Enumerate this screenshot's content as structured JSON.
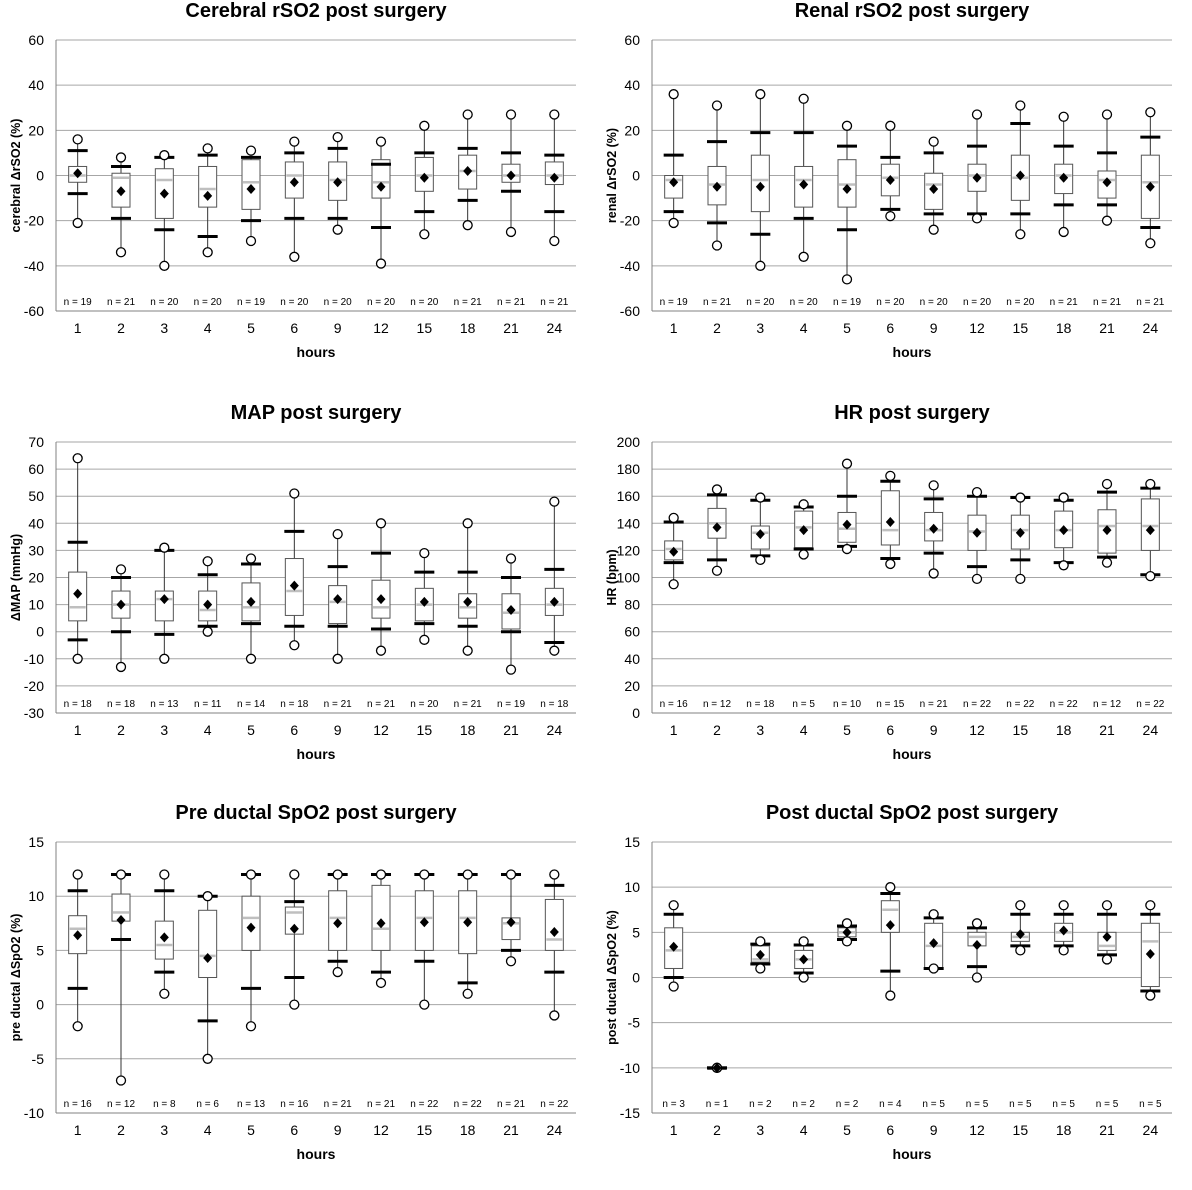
{
  "chart_data": [
    {
      "type": "boxplot",
      "title": "Cerebral rSO2 post surgery",
      "xlabel": "hours",
      "ylabel": "cerebral ΔrSO2 (%)",
      "categories": [
        "1",
        "2",
        "3",
        "4",
        "5",
        "6",
        "9",
        "12",
        "15",
        "18",
        "21",
        "24"
      ],
      "ylim": [
        -60,
        60
      ],
      "yticks": [
        -60,
        -40,
        -20,
        0,
        20,
        40,
        60
      ],
      "ytick_labels": [
        "-60",
        "-40",
        "-20",
        "0",
        "20",
        "40",
        "60"
      ],
      "n_labels": [
        "n = 19",
        "n = 21",
        "n = 20",
        "n = 20",
        "n = 19",
        "n = 20",
        "n = 20",
        "n = 20",
        "n = 20",
        "n = 21",
        "n = 21",
        "n = 21"
      ],
      "series": [
        {
          "name": "min_outlier",
          "values": [
            -21,
            -34,
            -40,
            -34,
            -29,
            -36,
            -24,
            -39,
            -26,
            -22,
            -25,
            -29
          ]
        },
        {
          "name": "whisker_low",
          "values": [
            -8,
            -19,
            -24,
            -27,
            -20,
            -19,
            -19,
            -23,
            -16,
            -11,
            -7,
            -16
          ]
        },
        {
          "name": "q1",
          "values": [
            -3,
            -14,
            -19,
            -14,
            -15,
            -10,
            -11,
            -10,
            -7,
            -6,
            -3,
            -4
          ]
        },
        {
          "name": "median",
          "values": [
            0,
            -1,
            -2,
            -6,
            -3,
            0,
            -2,
            -3,
            0,
            2,
            0,
            0
          ]
        },
        {
          "name": "q3",
          "values": [
            4,
            1,
            3,
            4,
            7,
            6,
            6,
            7,
            8,
            9,
            5,
            6
          ]
        },
        {
          "name": "whisker_high",
          "values": [
            11,
            4,
            8,
            9,
            8,
            10,
            12,
            5,
            10,
            12,
            10,
            9
          ]
        },
        {
          "name": "max_outlier",
          "values": [
            16,
            8,
            9,
            12,
            11,
            15,
            17,
            15,
            22,
            27,
            27,
            27
          ]
        },
        {
          "name": "mean",
          "values": [
            1,
            -7,
            -8,
            -9,
            -6,
            -3,
            -3,
            -5,
            -1,
            2,
            0,
            -1
          ]
        }
      ]
    },
    {
      "type": "boxplot",
      "title": "Renal rSO2 post surgery",
      "xlabel": "hours",
      "ylabel": "renal ΔrSO2 (%)",
      "categories": [
        "1",
        "2",
        "3",
        "4",
        "5",
        "6",
        "9",
        "12",
        "15",
        "18",
        "21",
        "24"
      ],
      "ylim": [
        -60,
        60
      ],
      "yticks": [
        -60,
        -40,
        -20,
        0,
        20,
        40,
        60
      ],
      "ytick_labels": [
        "-60",
        "-40",
        "-20",
        "0",
        "20",
        "40",
        "60"
      ],
      "n_labels": [
        "n = 19",
        "n = 21",
        "n = 20",
        "n = 20",
        "n = 19",
        "n = 20",
        "n = 20",
        "n = 20",
        "n = 20",
        "n = 21",
        "n = 21",
        "n = 21"
      ],
      "series": [
        {
          "name": "min_outlier",
          "values": [
            -21,
            -31,
            -40,
            -36,
            -46,
            -18,
            -24,
            -19,
            -26,
            -25,
            -20,
            -30
          ]
        },
        {
          "name": "whisker_low",
          "values": [
            -16,
            -21,
            -26,
            -19,
            -24,
            -15,
            -17,
            -17,
            -17,
            -13,
            -13,
            -23
          ]
        },
        {
          "name": "q1",
          "values": [
            -10,
            -13,
            -16,
            -14,
            -14,
            -9,
            -15,
            -7,
            -11,
            -8,
            -10,
            -19
          ]
        },
        {
          "name": "median",
          "values": [
            -2,
            -4,
            -2,
            -2,
            -4,
            -1,
            -4,
            0,
            -1,
            0,
            -2,
            -3
          ]
        },
        {
          "name": "q3",
          "values": [
            0,
            4,
            9,
            4,
            7,
            5,
            1,
            5,
            9,
            5,
            2,
            9
          ]
        },
        {
          "name": "whisker_high",
          "values": [
            9,
            15,
            19,
            19,
            13,
            8,
            10,
            13,
            23,
            13,
            10,
            17
          ]
        },
        {
          "name": "max_outlier",
          "values": [
            36,
            31,
            36,
            34,
            22,
            22,
            15,
            27,
            31,
            26,
            27,
            28
          ]
        },
        {
          "name": "mean",
          "values": [
            -3,
            -5,
            -5,
            -4,
            -6,
            -2,
            -6,
            -1,
            0,
            -1,
            -3,
            -5
          ]
        }
      ]
    },
    {
      "type": "boxplot",
      "title": "MAP post surgery",
      "xlabel": "hours",
      "ylabel": "ΔMAP (mmHg)",
      "categories": [
        "1",
        "2",
        "3",
        "4",
        "5",
        "6",
        "9",
        "12",
        "15",
        "18",
        "21",
        "24"
      ],
      "ylim": [
        -30,
        70
      ],
      "yticks": [
        -30,
        -20,
        -10,
        0,
        10,
        20,
        30,
        40,
        50,
        60,
        70
      ],
      "ytick_labels": [
        "-30",
        "-20",
        "-10",
        "0",
        "10",
        "20",
        "30",
        "40",
        "50",
        "60",
        "70"
      ],
      "n_labels": [
        "n = 18",
        "n = 18",
        "n = 13",
        "n = 11",
        "n = 14",
        "n = 18",
        "n = 21",
        "n = 21",
        "n = 20",
        "n = 21",
        "n = 19",
        "n = 18"
      ],
      "series": [
        {
          "name": "min_outlier",
          "values": [
            -10,
            -13,
            -10,
            0,
            -10,
            -5,
            -10,
            -7,
            -3,
            -7,
            -14,
            -7
          ]
        },
        {
          "name": "whisker_low",
          "values": [
            -3,
            0,
            -1,
            2,
            3,
            2,
            2,
            1,
            3,
            2,
            0,
            -4
          ]
        },
        {
          "name": "q1",
          "values": [
            4,
            5,
            4,
            4,
            4,
            6,
            3,
            5,
            4,
            5,
            1,
            6
          ]
        },
        {
          "name": "median",
          "values": [
            9,
            10,
            12,
            8,
            9,
            15,
            11,
            9,
            10,
            9,
            7,
            10
          ]
        },
        {
          "name": "q3",
          "values": [
            22,
            15,
            15,
            15,
            18,
            27,
            17,
            19,
            16,
            14,
            14,
            16
          ]
        },
        {
          "name": "whisker_high",
          "values": [
            33,
            20,
            30,
            21,
            25,
            37,
            24,
            29,
            22,
            22,
            20,
            23
          ]
        },
        {
          "name": "max_outlier",
          "values": [
            64,
            23,
            31,
            26,
            27,
            51,
            36,
            40,
            29,
            40,
            27,
            48
          ]
        },
        {
          "name": "mean",
          "values": [
            14,
            10,
            12,
            10,
            11,
            17,
            12,
            12,
            11,
            11,
            8,
            11
          ]
        }
      ]
    },
    {
      "type": "boxplot",
      "title": "HR post surgery",
      "xlabel": "hours",
      "ylabel": "HR (bpm)",
      "categories": [
        "1",
        "2",
        "3",
        "4",
        "5",
        "6",
        "9",
        "12",
        "15",
        "18",
        "21",
        "24"
      ],
      "ylim": [
        0,
        200
      ],
      "yticks": [
        0,
        20,
        40,
        60,
        80,
        100,
        120,
        140,
        160,
        180,
        200
      ],
      "ytick_labels": [
        "0",
        "20",
        "40",
        "60",
        "80",
        "100",
        "120",
        "140",
        "160",
        "180",
        "200"
      ],
      "n_labels": [
        "n = 16",
        "n = 12",
        "n = 18",
        "n = 5",
        "n = 10",
        "n = 15",
        "n = 21",
        "n = 22",
        "n = 22",
        "n = 22",
        "n = 12",
        "n = 22"
      ],
      "series": [
        {
          "name": "min_outlier",
          "values": [
            95,
            105,
            113,
            117,
            121,
            110,
            103,
            99,
            99,
            109,
            111,
            101
          ]
        },
        {
          "name": "whisker_low",
          "values": [
            111,
            113,
            116,
            121,
            123,
            114,
            118,
            108,
            113,
            111,
            115,
            102
          ]
        },
        {
          "name": "q1",
          "values": [
            113,
            129,
            121,
            122,
            126,
            124,
            127,
            120,
            121,
            122,
            118,
            120
          ]
        },
        {
          "name": "median",
          "values": [
            121,
            140,
            133,
            137,
            136,
            135,
            135,
            134,
            135,
            135,
            138,
            138
          ]
        },
        {
          "name": "q3",
          "values": [
            127,
            151,
            138,
            149,
            148,
            164,
            148,
            146,
            146,
            149,
            150,
            158
          ]
        },
        {
          "name": "whisker_high",
          "values": [
            141,
            161,
            157,
            152,
            160,
            171,
            158,
            160,
            159,
            157,
            163,
            166
          ]
        },
        {
          "name": "max_outlier",
          "values": [
            144,
            165,
            159,
            154,
            184,
            175,
            168,
            163,
            159,
            159,
            169,
            169
          ]
        },
        {
          "name": "mean",
          "values": [
            119,
            137,
            132,
            135,
            139,
            141,
            136,
            133,
            133,
            135,
            135,
            135
          ]
        }
      ]
    },
    {
      "type": "boxplot",
      "title": "Pre ductal SpO2 post surgery",
      "xlabel": "hours",
      "ylabel": "pre ductal ΔSpO2 (%)",
      "categories": [
        "1",
        "2",
        "3",
        "4",
        "5",
        "6",
        "9",
        "12",
        "15",
        "18",
        "21",
        "24"
      ],
      "ylim": [
        -10,
        15
      ],
      "yticks": [
        -10,
        -5,
        0,
        5,
        10,
        15
      ],
      "ytick_labels": [
        "-10",
        "-5",
        "0",
        "5",
        "10",
        "15"
      ],
      "n_labels": [
        "n = 16",
        "n = 12",
        "n = 8",
        "n = 6",
        "n = 13",
        "n = 16",
        "n = 21",
        "n = 21",
        "n = 22",
        "n = 22",
        "n = 21",
        "n = 22"
      ],
      "series": [
        {
          "name": "min_outlier",
          "values": [
            -2,
            -7,
            1,
            -5,
            -2,
            0,
            3,
            2,
            0,
            1,
            4,
            -1
          ]
        },
        {
          "name": "whisker_low",
          "values": [
            1.5,
            6,
            3,
            -1.5,
            1.5,
            2.5,
            4,
            3,
            4,
            2,
            5,
            3
          ]
        },
        {
          "name": "q1",
          "values": [
            4.7,
            7.7,
            4.2,
            2.5,
            5,
            6.5,
            5,
            5,
            5,
            4.7,
            6,
            5
          ]
        },
        {
          "name": "median",
          "values": [
            7,
            8.5,
            5.5,
            4.5,
            8,
            8.5,
            8,
            7,
            8,
            8,
            7.5,
            6
          ]
        },
        {
          "name": "q3",
          "values": [
            8.2,
            10.2,
            7.7,
            8.7,
            10,
            9,
            10.5,
            11,
            10.5,
            10.5,
            8,
            9.7
          ]
        },
        {
          "name": "whisker_high",
          "values": [
            10.5,
            12,
            10.5,
            10,
            12,
            9.5,
            12,
            12,
            12,
            12,
            12,
            11
          ]
        },
        {
          "name": "max_outlier",
          "values": [
            12,
            12,
            12,
            10,
            12,
            12,
            12,
            12,
            12,
            12,
            12,
            12
          ]
        },
        {
          "name": "mean",
          "values": [
            6.4,
            7.8,
            6.2,
            4.3,
            7.1,
            7,
            7.5,
            7.5,
            7.6,
            7.6,
            7.6,
            6.7
          ]
        }
      ]
    },
    {
      "type": "boxplot",
      "title": "Post ductal SpO2 post surgery",
      "xlabel": "hours",
      "ylabel": "post ductal ΔSpO2 (%)",
      "categories": [
        "1",
        "2",
        "3",
        "4",
        "5",
        "6",
        "9",
        "12",
        "15",
        "18",
        "21",
        "24"
      ],
      "ylim": [
        -15,
        15
      ],
      "yticks": [
        -15,
        -10,
        -5,
        0,
        5,
        10,
        15
      ],
      "ytick_labels": [
        "-15",
        "-10",
        "-5",
        "0",
        "5",
        "10",
        "15"
      ],
      "n_labels": [
        "n = 3",
        "n = 1",
        "n = 2",
        "n = 2",
        "n = 2",
        "n = 4",
        "n = 5",
        "n = 5",
        "n = 5",
        "n = 5",
        "n = 5",
        "n = 5"
      ],
      "series": [
        {
          "name": "min_outlier",
          "values": [
            -1,
            -10,
            1,
            0,
            4,
            -2,
            1,
            0,
            3,
            3,
            2,
            -2
          ]
        },
        {
          "name": "whisker_low",
          "values": [
            0,
            -10,
            1.5,
            0.5,
            4.2,
            0.7,
            1,
            1.2,
            3.5,
            3.5,
            2.5,
            -1.5
          ]
        },
        {
          "name": "q1",
          "values": [
            1,
            -10,
            1.7,
            1,
            4.5,
            5,
            1,
            3.5,
            4,
            4,
            3,
            -1
          ]
        },
        {
          "name": "median",
          "values": [
            3,
            -10,
            2,
            2,
            5,
            7.5,
            3.5,
            4.5,
            4.5,
            5,
            3.5,
            4
          ]
        },
        {
          "name": "q3",
          "values": [
            5.5,
            -10,
            3.5,
            3,
            5.5,
            8.5,
            6,
            5,
            5,
            6,
            5,
            6
          ]
        },
        {
          "name": "whisker_high",
          "values": [
            7,
            -10,
            3.7,
            3.6,
            5.7,
            9.3,
            6.6,
            5.5,
            7,
            7,
            7,
            7
          ]
        },
        {
          "name": "max_outlier",
          "values": [
            8,
            -10,
            4,
            4,
            6,
            10,
            7,
            6,
            8,
            8,
            8,
            8
          ]
        },
        {
          "name": "mean",
          "values": [
            3.4,
            -10,
            2.5,
            2,
            5,
            5.8,
            3.8,
            3.6,
            4.8,
            5.2,
            4.5,
            2.6
          ]
        }
      ]
    }
  ]
}
